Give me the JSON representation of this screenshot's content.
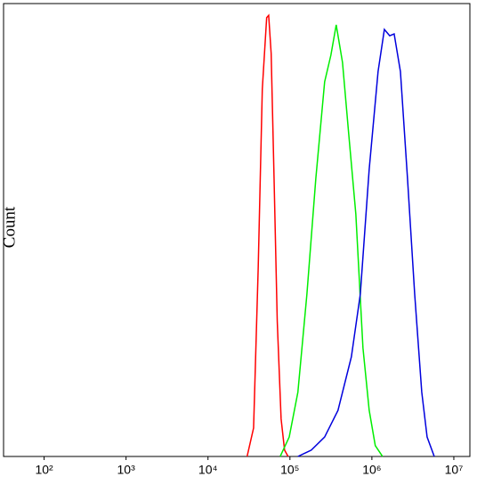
{
  "chart_data": {
    "type": "line",
    "y_label": "Count",
    "log_x": true,
    "xlim": [
      32,
      15700000
    ],
    "ylim": [
      0,
      100
    ],
    "xticks": [
      {
        "value": 100,
        "label": "10²"
      },
      {
        "value": 1000,
        "label": "10³"
      },
      {
        "value": 10000,
        "label": "10⁴"
      },
      {
        "value": 100000,
        "label": "10⁵"
      },
      {
        "value": 1000000,
        "label": "10⁶"
      },
      {
        "value": 10000000,
        "label": "10⁷"
      }
    ],
    "series": [
      {
        "color": "#ff0000",
        "x": [
          30000,
          36000,
          41000,
          46000,
          52000,
          55000,
          59000,
          64000,
          70000,
          78000,
          86000,
          95000
        ],
        "values": [
          0,
          6.3,
          41.7,
          81.1,
          96.9,
          97.4,
          89.0,
          61.4,
          29.9,
          8.3,
          1.4,
          0
        ]
      },
      {
        "color": "#00ee00",
        "x": [
          76000,
          98000,
          125000,
          161000,
          207000,
          265000,
          316000,
          367000,
          438000,
          521000,
          637000,
          778000,
          927000,
          1100000,
          1350000
        ],
        "values": [
          0,
          4.3,
          14.2,
          35.8,
          61.4,
          82.7,
          88.6,
          95.3,
          87.0,
          71.3,
          53.5,
          24.0,
          10.2,
          2.4,
          0
        ]
      },
      {
        "color": "#0000dd",
        "x": [
          125000,
          182000,
          265000,
          386000,
          562000,
          722000,
          927000,
          1190000,
          1420000,
          1650000,
          1870000,
          2230000,
          2720000,
          3330000,
          4060000,
          4720000,
          5770000
        ],
        "values": [
          0,
          1.4,
          4.3,
          10.2,
          22.0,
          35.8,
          63.4,
          85.0,
          94.3,
          92.9,
          93.3,
          85.0,
          61.4,
          35.8,
          14.2,
          4.3,
          0
        ]
      }
    ]
  }
}
